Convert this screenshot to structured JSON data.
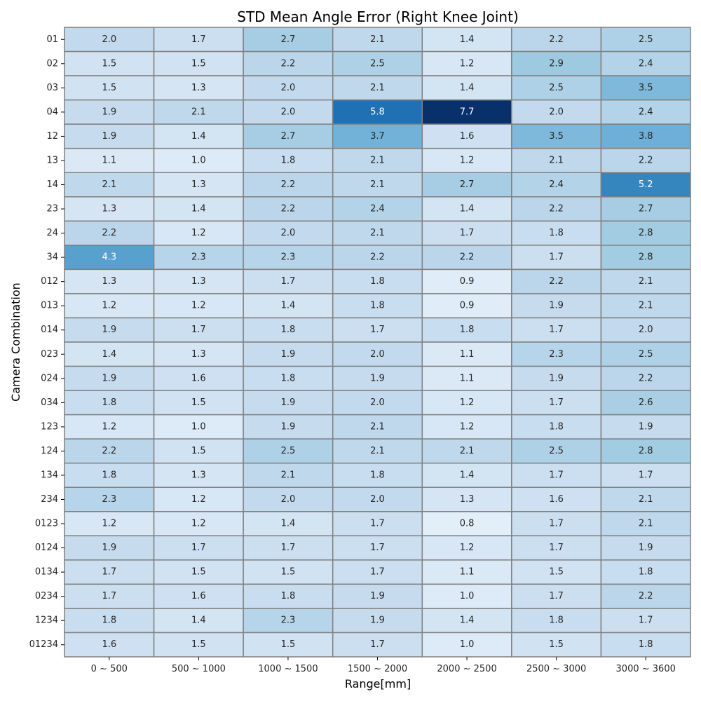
{
  "chart_data": {
    "type": "heatmap",
    "title": "STD Mean Angle Error (Right Knee Joint)",
    "xlabel": "Range[mm]",
    "ylabel": "Camera Combination",
    "x_categories": [
      "0 ~ 500",
      "500 ~ 1000",
      "1000 ~ 1500",
      "1500 ~ 2000",
      "2000 ~ 2500",
      "2500 ~ 3000",
      "3000 ~ 3600"
    ],
    "y_categories": [
      "01",
      "02",
      "03",
      "04",
      "12",
      "13",
      "14",
      "23",
      "24",
      "34",
      "012",
      "013",
      "014",
      "023",
      "024",
      "034",
      "123",
      "124",
      "134",
      "234",
      "0123",
      "0124",
      "0134",
      "0234",
      "1234",
      "01234"
    ],
    "values": [
      [
        2.0,
        1.7,
        2.7,
        2.1,
        1.4,
        2.2,
        2.5
      ],
      [
        1.5,
        1.5,
        2.2,
        2.5,
        1.2,
        2.9,
        2.4
      ],
      [
        1.5,
        1.3,
        2.0,
        2.1,
        1.4,
        2.5,
        3.5
      ],
      [
        1.9,
        2.1,
        2.0,
        5.8,
        7.7,
        2.0,
        2.4
      ],
      [
        1.9,
        1.4,
        2.7,
        3.7,
        1.6,
        3.5,
        3.8
      ],
      [
        1.1,
        1.0,
        1.8,
        2.1,
        1.2,
        2.1,
        2.2
      ],
      [
        2.1,
        1.3,
        2.2,
        2.1,
        2.7,
        2.4,
        5.2
      ],
      [
        1.3,
        1.4,
        2.2,
        2.4,
        1.4,
        2.2,
        2.7
      ],
      [
        2.2,
        1.2,
        2.0,
        2.1,
        1.7,
        1.8,
        2.8
      ],
      [
        4.3,
        2.3,
        2.3,
        2.2,
        2.2,
        1.7,
        2.8
      ],
      [
        1.3,
        1.3,
        1.7,
        1.8,
        0.9,
        2.2,
        2.1
      ],
      [
        1.2,
        1.2,
        1.4,
        1.8,
        0.9,
        1.9,
        2.1
      ],
      [
        1.9,
        1.7,
        1.8,
        1.7,
        1.8,
        1.7,
        2.0
      ],
      [
        1.4,
        1.3,
        1.9,
        2.0,
        1.1,
        2.3,
        2.5
      ],
      [
        1.9,
        1.6,
        1.8,
        1.9,
        1.1,
        1.9,
        2.2
      ],
      [
        1.8,
        1.5,
        1.9,
        2.0,
        1.2,
        1.7,
        2.6
      ],
      [
        1.2,
        1.0,
        1.9,
        2.1,
        1.2,
        1.8,
        1.9
      ],
      [
        2.2,
        1.5,
        2.5,
        2.1,
        2.1,
        2.5,
        2.8
      ],
      [
        1.8,
        1.3,
        2.1,
        1.8,
        1.4,
        1.7,
        1.7
      ],
      [
        2.3,
        1.2,
        2.0,
        2.0,
        1.3,
        1.6,
        2.1
      ],
      [
        1.2,
        1.2,
        1.4,
        1.7,
        0.8,
        1.7,
        2.1
      ],
      [
        1.9,
        1.7,
        1.7,
        1.7,
        1.2,
        1.7,
        1.9
      ],
      [
        1.7,
        1.5,
        1.5,
        1.7,
        1.1,
        1.5,
        1.8
      ],
      [
        1.7,
        1.6,
        1.8,
        1.9,
        1.0,
        1.7,
        2.2
      ],
      [
        1.8,
        1.4,
        2.3,
        1.9,
        1.4,
        1.8,
        1.7
      ],
      [
        1.6,
        1.5,
        1.5,
        1.7,
        1.0,
        1.5,
        1.8
      ]
    ],
    "colormap": "Blues",
    "color_range": [
      0.0,
      7.7
    ],
    "cell_border_color": "#808080",
    "legend": "none",
    "grid": false
  }
}
